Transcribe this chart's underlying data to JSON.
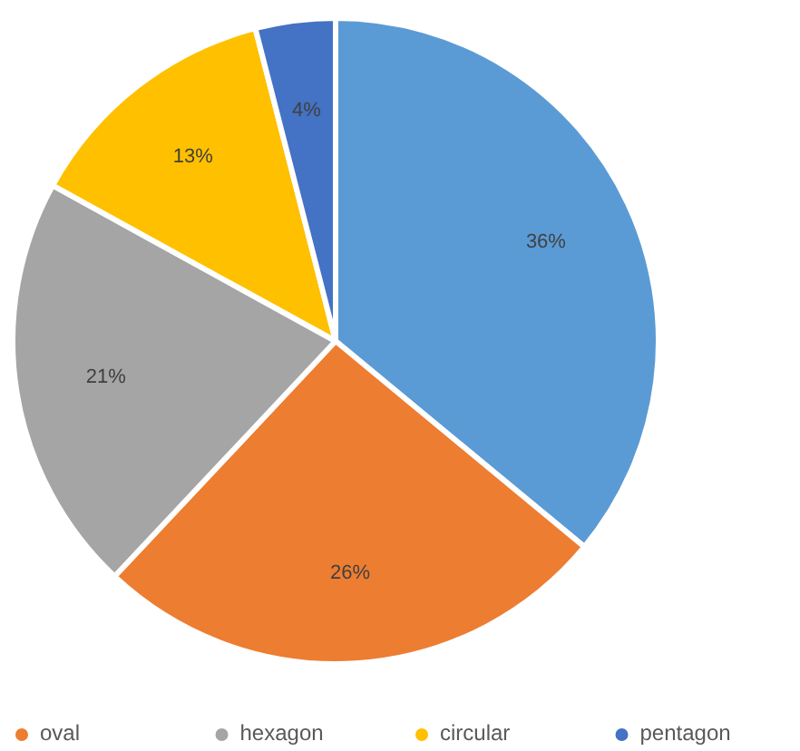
{
  "chart_data": {
    "type": "pie",
    "categories": [
      null,
      "oval",
      "hexagon",
      "circular",
      "pentagon"
    ],
    "values": [
      36,
      26,
      21,
      13,
      4
    ],
    "colors": [
      "#5b9bd5",
      "#ed7d31",
      "#a5a5a5",
      "#ffc000",
      "#4472c4"
    ],
    "value_labels": [
      "36%",
      "26%",
      "21%",
      "13%",
      "4%"
    ],
    "legend": "bottom"
  }
}
